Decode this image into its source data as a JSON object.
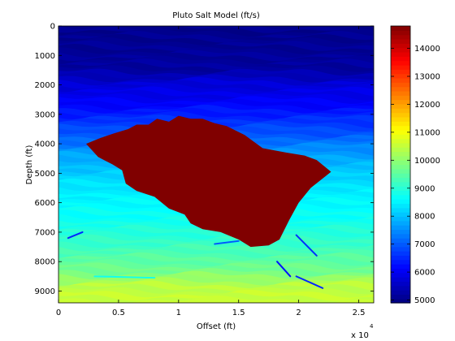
{
  "chart_data": {
    "type": "heatmap",
    "title": "Pluto Salt Model (ft/s)",
    "xlabel": "Offset (ft)",
    "ylabel": "Depth (ft)",
    "x_exponent_label": "x 10",
    "x_exponent_power": "4",
    "xlim": [
      0,
      26250
    ],
    "ylim": [
      0,
      9400
    ],
    "y_reversed": true,
    "x_ticks": [
      {
        "value": 0,
        "label": "0"
      },
      {
        "value": 5000,
        "label": "0.5"
      },
      {
        "value": 10000,
        "label": "1"
      },
      {
        "value": 15000,
        "label": "1.5"
      },
      {
        "value": 20000,
        "label": "2"
      },
      {
        "value": 25000,
        "label": "2.5"
      }
    ],
    "y_ticks": [
      {
        "value": 0,
        "label": "0"
      },
      {
        "value": 1000,
        "label": "1000"
      },
      {
        "value": 2000,
        "label": "2000"
      },
      {
        "value": 3000,
        "label": "3000"
      },
      {
        "value": 4000,
        "label": "4000"
      },
      {
        "value": 5000,
        "label": "5000"
      },
      {
        "value": 6000,
        "label": "6000"
      },
      {
        "value": 7000,
        "label": "7000"
      },
      {
        "value": 8000,
        "label": "8000"
      },
      {
        "value": 9000,
        "label": "9000"
      }
    ],
    "colorbar": {
      "colormap": "jet",
      "range": [
        4900,
        14800
      ],
      "ticks": [
        {
          "value": 5000,
          "label": "5000"
        },
        {
          "value": 6000,
          "label": "6000"
        },
        {
          "value": 7000,
          "label": "7000"
        },
        {
          "value": 8000,
          "label": "8000"
        },
        {
          "value": 9000,
          "label": "9000"
        },
        {
          "value": 10000,
          "label": "10000"
        },
        {
          "value": 11000,
          "label": "11000"
        },
        {
          "value": 12000,
          "label": "12000"
        },
        {
          "value": 13000,
          "label": "13000"
        },
        {
          "value": 14000,
          "label": "14000"
        }
      ]
    },
    "velocity_profile": [
      {
        "depth": 0,
        "velocity": 5000
      },
      {
        "depth": 1500,
        "velocity": 5200
      },
      {
        "depth": 1900,
        "velocity": 5700
      },
      {
        "depth": 2500,
        "velocity": 6000
      },
      {
        "depth": 3500,
        "velocity": 6800
      },
      {
        "depth": 4500,
        "velocity": 7800
      },
      {
        "depth": 5500,
        "velocity": 8400
      },
      {
        "depth": 6500,
        "velocity": 8700
      },
      {
        "depth": 7500,
        "velocity": 9200
      },
      {
        "depth": 8300,
        "velocity": 9700
      },
      {
        "depth": 8800,
        "velocity": 10400
      },
      {
        "depth": 9400,
        "velocity": 10600
      }
    ],
    "salt_body": {
      "velocity": 14800,
      "outline": [
        [
          2300,
          4000
        ],
        [
          3500,
          3800
        ],
        [
          4600,
          3650
        ],
        [
          5800,
          3500
        ],
        [
          6500,
          3350
        ],
        [
          7500,
          3350
        ],
        [
          8200,
          3150
        ],
        [
          9200,
          3250
        ],
        [
          10000,
          3050
        ],
        [
          11000,
          3150
        ],
        [
          12000,
          3150
        ],
        [
          13000,
          3300
        ],
        [
          14000,
          3400
        ],
        [
          15500,
          3700
        ],
        [
          17000,
          4150
        ],
        [
          19000,
          4300
        ],
        [
          20500,
          4400
        ],
        [
          21500,
          4550
        ],
        [
          22700,
          4950
        ],
        [
          21000,
          5500
        ],
        [
          20000,
          6000
        ],
        [
          19200,
          6600
        ],
        [
          18400,
          7250
        ],
        [
          17500,
          7450
        ],
        [
          16000,
          7500
        ],
        [
          15000,
          7250
        ],
        [
          13500,
          7000
        ],
        [
          12000,
          6900
        ],
        [
          11000,
          6700
        ],
        [
          10500,
          6400
        ],
        [
          9200,
          6200
        ],
        [
          8000,
          5800
        ],
        [
          6500,
          5600
        ],
        [
          5600,
          5350
        ],
        [
          5300,
          4900
        ],
        [
          4500,
          4700
        ],
        [
          3300,
          4450
        ]
      ]
    },
    "streaks": [
      {
        "x1": 800,
        "y1": 7200,
        "x2": 2000,
        "y2": 7000,
        "velocity": 6500
      },
      {
        "x1": 13000,
        "y1": 7400,
        "x2": 15000,
        "y2": 7300,
        "velocity": 7000
      },
      {
        "x1": 19800,
        "y1": 7100,
        "x2": 21500,
        "y2": 7800,
        "velocity": 6600
      },
      {
        "x1": 18200,
        "y1": 8000,
        "x2": 19300,
        "y2": 8500,
        "velocity": 6300
      },
      {
        "x1": 19800,
        "y1": 8500,
        "x2": 22000,
        "y2": 8900,
        "velocity": 6500
      },
      {
        "x1": 3000,
        "y1": 8500,
        "x2": 8000,
        "y2": 8550,
        "velocity": 8800
      }
    ]
  }
}
